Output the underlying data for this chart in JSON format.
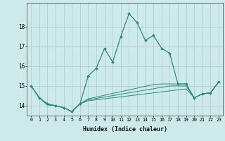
{
  "xlabel": "Humidex (Indice chaleur)",
  "x_values": [
    0,
    1,
    2,
    3,
    4,
    5,
    6,
    7,
    8,
    9,
    10,
    11,
    12,
    13,
    14,
    15,
    16,
    17,
    18,
    19,
    20,
    21,
    22,
    23
  ],
  "main_line": [
    15.0,
    14.4,
    14.1,
    14.0,
    13.9,
    13.7,
    14.1,
    15.5,
    15.9,
    16.9,
    16.2,
    17.5,
    18.65,
    18.2,
    17.3,
    17.55,
    16.9,
    16.65,
    15.1,
    15.1,
    14.4,
    14.6,
    14.65,
    15.2
  ],
  "band1": [
    15.0,
    14.4,
    14.05,
    14.0,
    13.9,
    13.7,
    14.1,
    14.25,
    14.3,
    14.35,
    14.4,
    14.45,
    14.5,
    14.55,
    14.6,
    14.65,
    14.7,
    14.75,
    14.8,
    14.85,
    14.4,
    14.6,
    14.65,
    15.2
  ],
  "band2": [
    15.0,
    14.4,
    14.05,
    14.0,
    13.9,
    13.7,
    14.1,
    14.3,
    14.37,
    14.44,
    14.51,
    14.58,
    14.65,
    14.72,
    14.79,
    14.86,
    14.93,
    15.0,
    15.0,
    15.0,
    14.4,
    14.6,
    14.65,
    15.2
  ],
  "band3": [
    15.0,
    14.4,
    14.05,
    14.0,
    13.9,
    13.7,
    14.1,
    14.35,
    14.44,
    14.53,
    14.62,
    14.71,
    14.8,
    14.89,
    14.98,
    15.07,
    15.1,
    15.1,
    15.1,
    15.1,
    14.4,
    14.6,
    14.65,
    15.2
  ],
  "line_color": "#2d8b78",
  "bg_color": "#cceaea",
  "grid_color": "#b0c8c8",
  "ylim": [
    13.5,
    19.2
  ],
  "yticks": [
    14,
    15,
    16,
    17,
    18
  ],
  "xticks": [
    0,
    1,
    2,
    3,
    4,
    5,
    6,
    7,
    8,
    9,
    10,
    11,
    12,
    13,
    14,
    15,
    16,
    17,
    18,
    19,
    20,
    21,
    22,
    23
  ]
}
